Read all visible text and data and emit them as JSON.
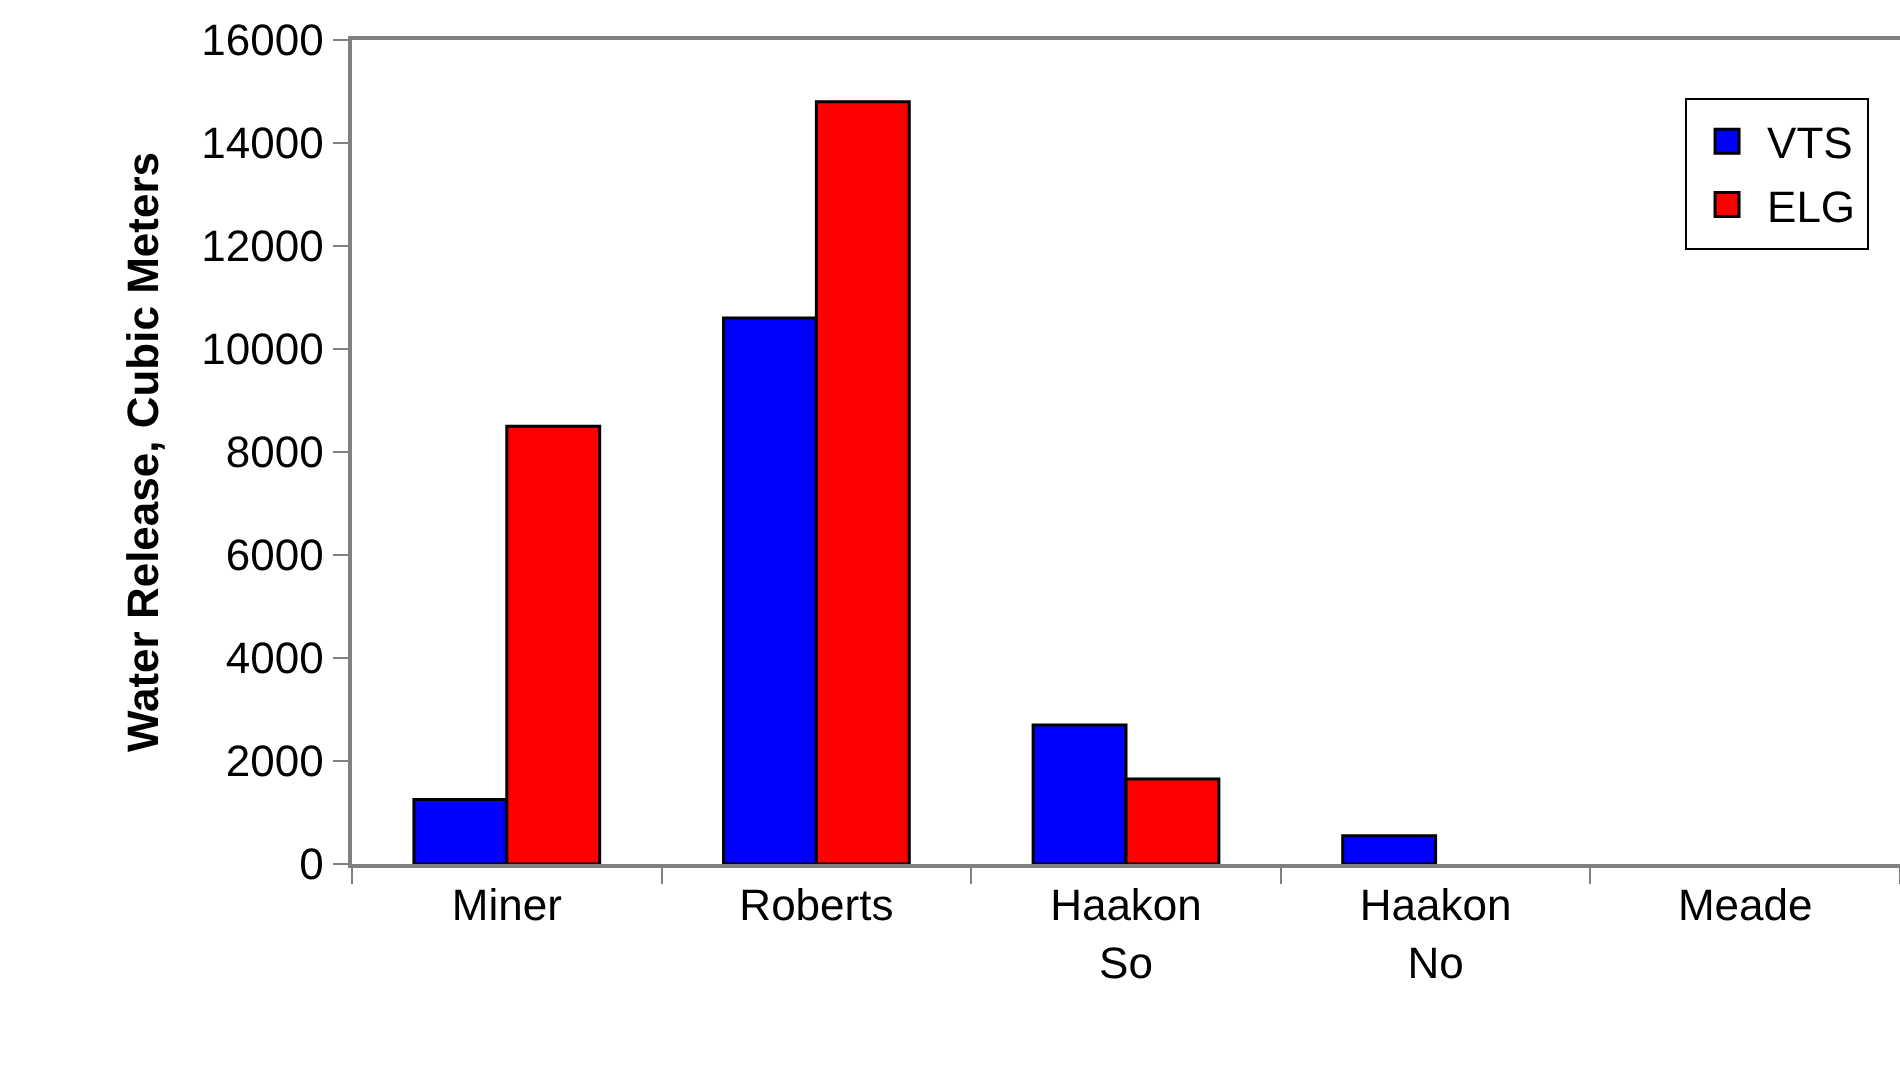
{
  "chart_data": {
    "type": "bar",
    "ylabel": "Water Release, Cubic Meters",
    "categories": [
      "Miner",
      "Roberts",
      "Haakon So",
      "Haakon No",
      "Meade"
    ],
    "series": [
      {
        "name": "VTS",
        "color": "#0000ff",
        "values": [
          1250,
          10600,
          2700,
          550,
          0
        ]
      },
      {
        "name": "ELG",
        "color": "#ff0000",
        "values": [
          8500,
          14800,
          1650,
          0,
          0
        ]
      }
    ],
    "ylim": [
      0,
      16000
    ],
    "yticks": [
      0,
      2000,
      4000,
      6000,
      8000,
      10000,
      12000,
      14000,
      16000
    ],
    "legend": "top right"
  }
}
